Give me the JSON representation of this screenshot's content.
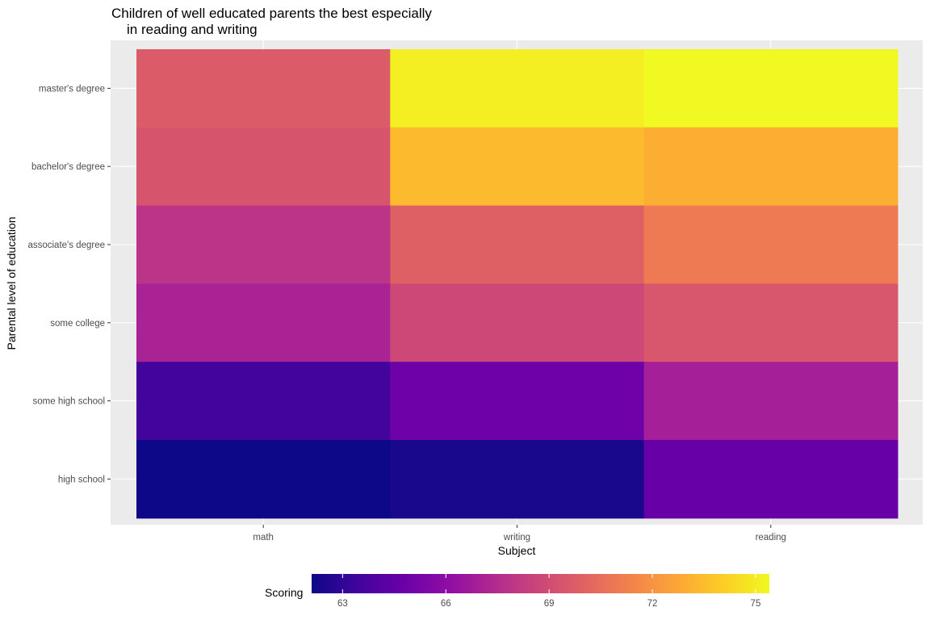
{
  "chart_data": {
    "type": "heatmap",
    "title": "Children of well educated parents the best especially\n    in reading and writing",
    "title_lines": [
      "Children of well educated parents the best especially",
      "in reading and writing"
    ],
    "xlabel": "Subject",
    "ylabel": "Parental level of education",
    "x_categories": [
      "math",
      "writing",
      "reading"
    ],
    "y_categories_top_to_bottom": [
      "master's degree",
      "bachelor's degree",
      "associate's degree",
      "some college",
      "some high school",
      "high school"
    ],
    "values": [
      [
        69.7,
        75.1,
        75.4
      ],
      [
        69.4,
        73.4,
        73.0
      ],
      [
        67.9,
        69.9,
        71.0
      ],
      [
        67.1,
        68.8,
        69.5
      ],
      [
        63.5,
        64.9,
        66.9
      ],
      [
        62.1,
        62.4,
        64.7
      ]
    ],
    "legend": {
      "title": "Scoring",
      "position": "bottom",
      "ticks": [
        63,
        66,
        69,
        72,
        75
      ],
      "range": [
        62.1,
        75.4
      ],
      "colormap": "plasma"
    },
    "grid": true,
    "colors": {
      "panel_background": "#ebebeb",
      "grid_line": "#ffffff",
      "axis_text": "#4d4d4d",
      "title_text": "#000000"
    }
  }
}
